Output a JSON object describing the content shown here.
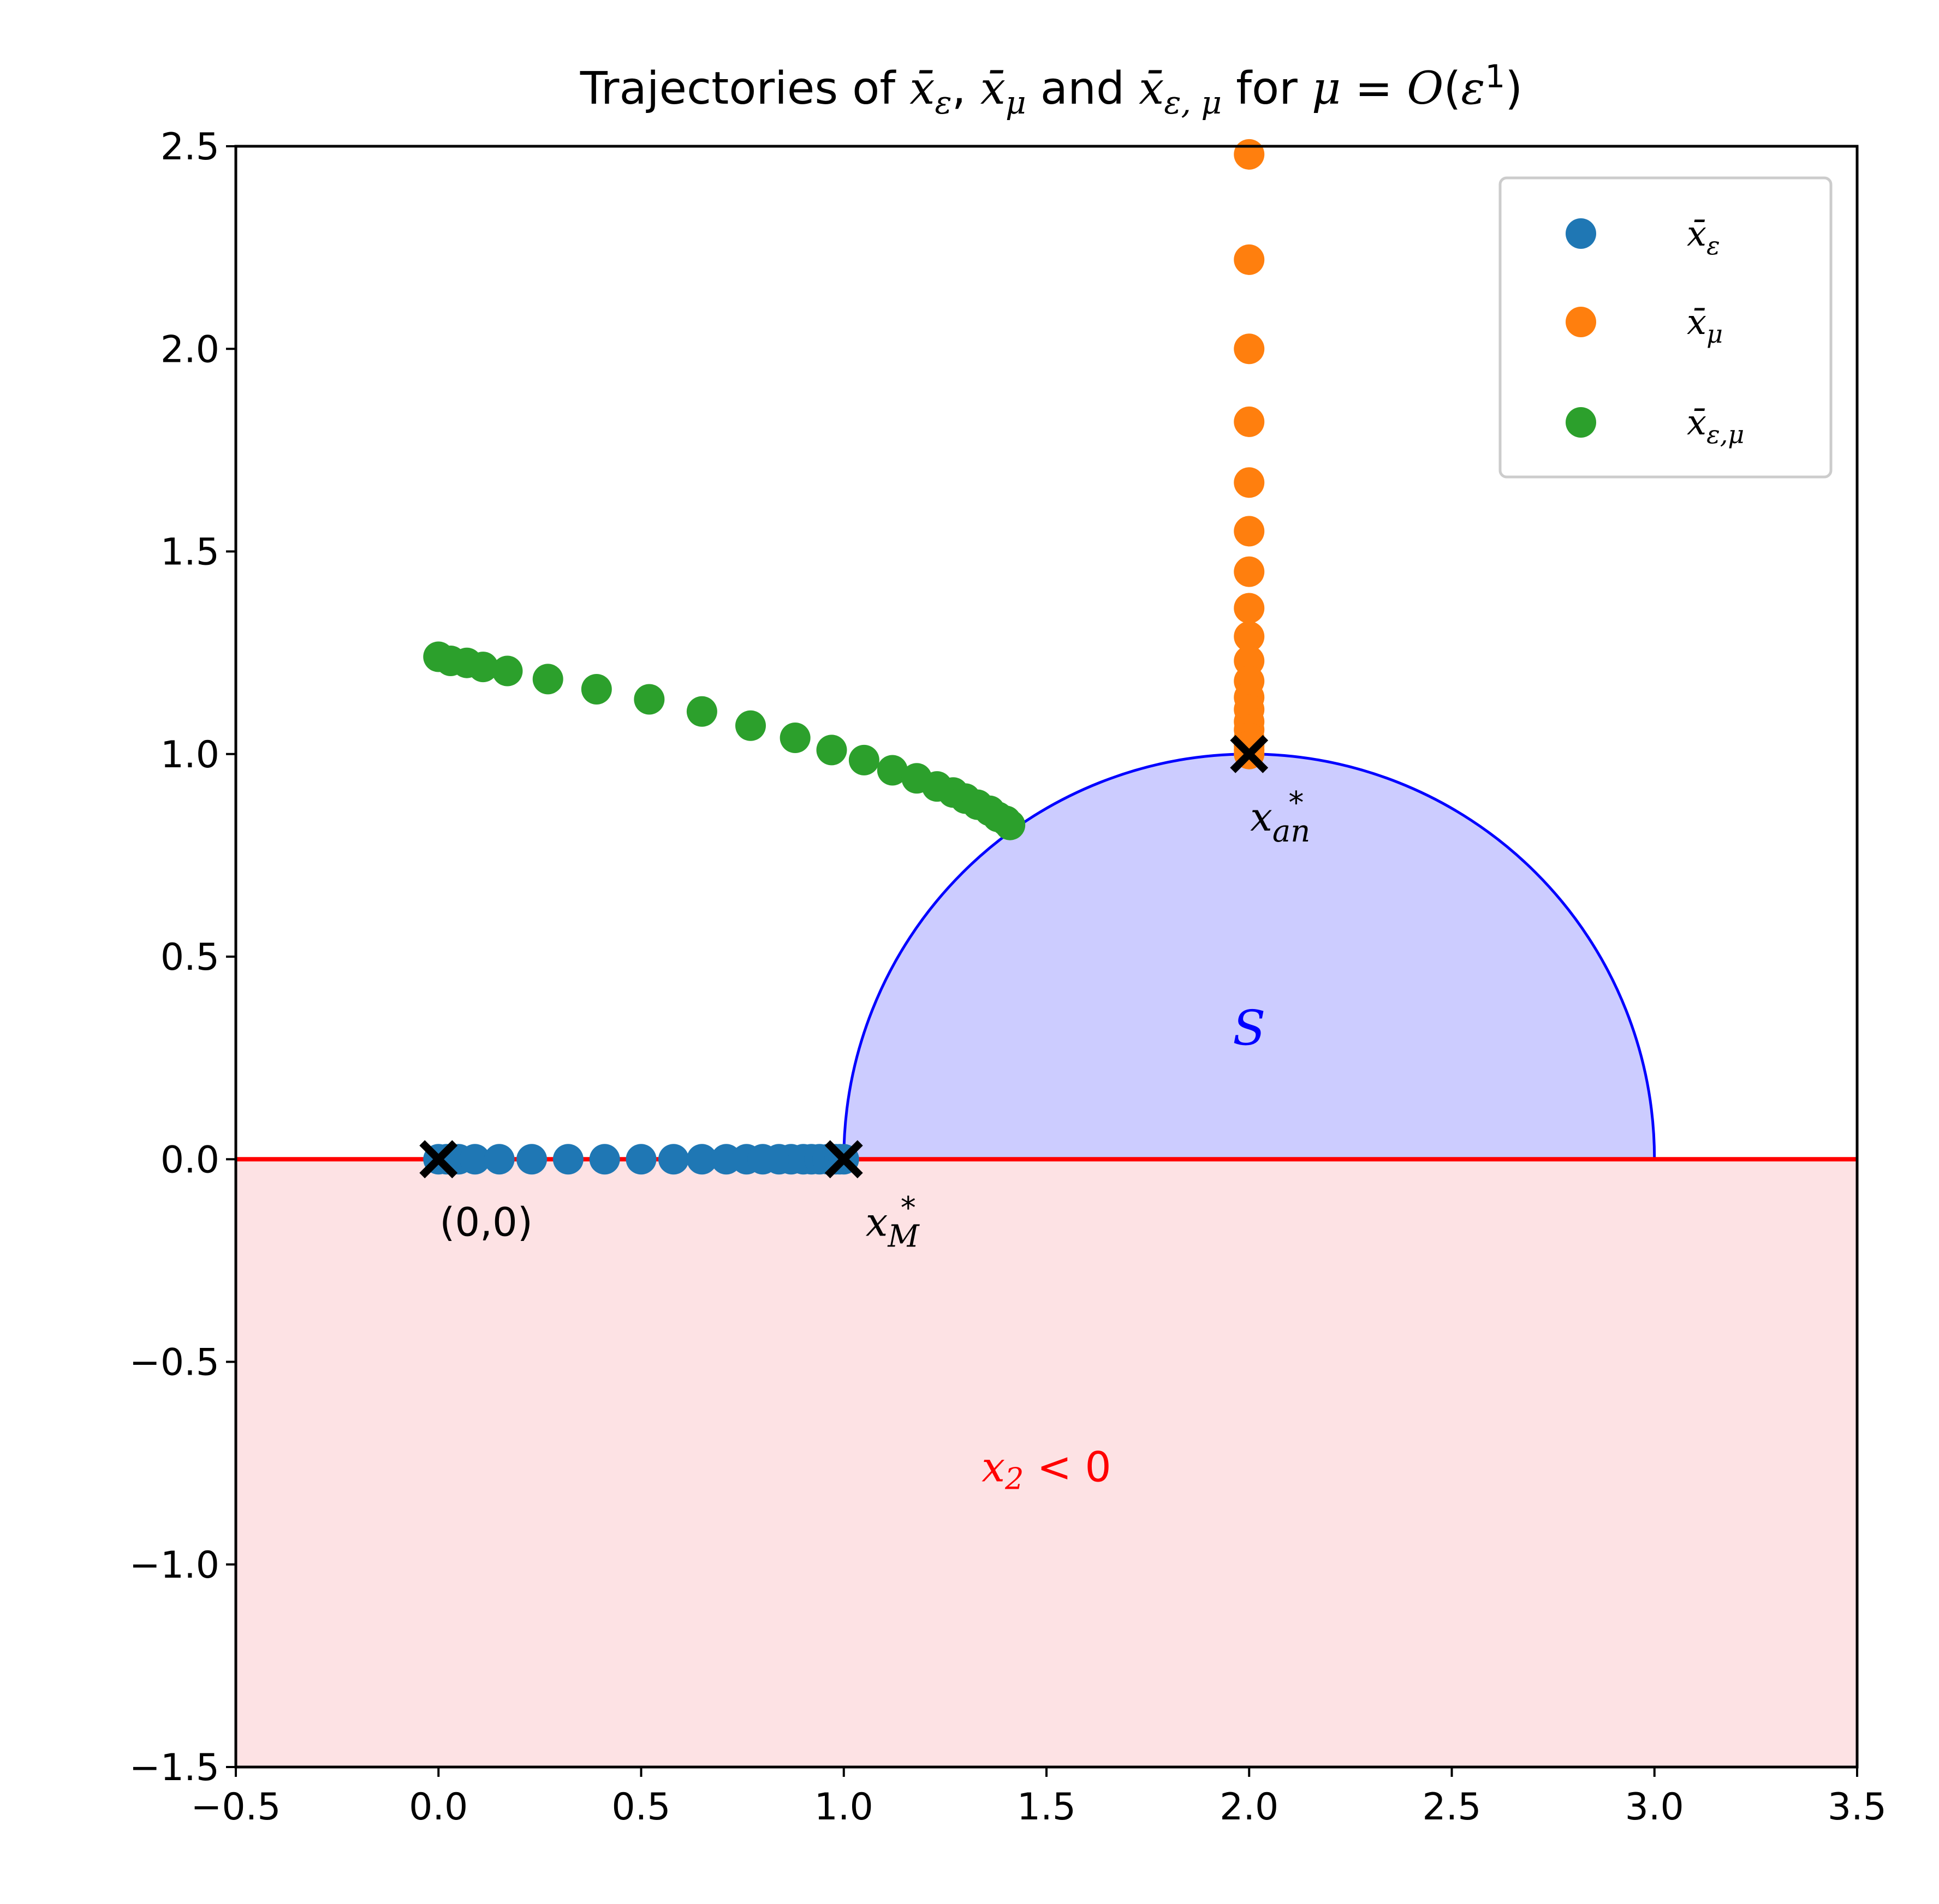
{
  "chart_data": {
    "type": "scatter",
    "title": "Trajectories of x̄ε, x̄μ and x̄ε,μ for μ = O(ε¹)",
    "xlim": [
      -0.5,
      3.5
    ],
    "ylim": [
      -1.5,
      2.5
    ],
    "xticks": [
      "−0.5",
      "0.0",
      "0.5",
      "1.0",
      "1.5",
      "2.0",
      "2.5",
      "3.0",
      "3.5"
    ],
    "yticks": [
      "−1.5",
      "−1.0",
      "−0.5",
      "0.0",
      "0.5",
      "1.0",
      "1.5",
      "2.0",
      "2.5"
    ],
    "grid": false,
    "legend_position": "top-right",
    "series": [
      {
        "name": "x̄ε",
        "color": "#1f77b4",
        "points": [
          [
            0.0,
            0.0
          ],
          [
            0.02,
            0.0
          ],
          [
            0.05,
            0.0
          ],
          [
            0.09,
            0.0
          ],
          [
            0.15,
            0.0
          ],
          [
            0.23,
            0.0
          ],
          [
            0.32,
            0.0
          ],
          [
            0.41,
            0.0
          ],
          [
            0.5,
            0.0
          ],
          [
            0.58,
            0.0
          ],
          [
            0.65,
            0.0
          ],
          [
            0.71,
            0.0
          ],
          [
            0.76,
            0.0
          ],
          [
            0.8,
            0.0
          ],
          [
            0.84,
            0.0
          ],
          [
            0.87,
            0.0
          ],
          [
            0.9,
            0.0
          ],
          [
            0.92,
            0.0
          ],
          [
            0.94,
            0.0
          ],
          [
            0.96,
            0.0
          ],
          [
            0.98,
            0.0
          ],
          [
            0.99,
            0.0
          ],
          [
            1.0,
            0.0
          ]
        ]
      },
      {
        "name": "x̄μ",
        "color": "#ff7f0e",
        "points": [
          [
            2.0,
            2.48
          ],
          [
            2.0,
            2.22
          ],
          [
            2.0,
            2.0
          ],
          [
            2.0,
            1.82
          ],
          [
            2.0,
            1.67
          ],
          [
            2.0,
            1.55
          ],
          [
            2.0,
            1.45
          ],
          [
            2.0,
            1.36
          ],
          [
            2.0,
            1.29
          ],
          [
            2.0,
            1.23
          ],
          [
            2.0,
            1.18
          ],
          [
            2.0,
            1.14
          ],
          [
            2.0,
            1.11
          ],
          [
            2.0,
            1.08
          ],
          [
            2.0,
            1.06
          ],
          [
            2.0,
            1.04
          ],
          [
            2.0,
            1.02
          ],
          [
            2.0,
            1.01
          ],
          [
            2.0,
            1.0
          ]
        ]
      },
      {
        "name": "x̄ε,μ",
        "color": "#2ca02c",
        "points": [
          [
            0.0,
            1.24
          ],
          [
            0.03,
            1.23
          ],
          [
            0.07,
            1.225
          ],
          [
            0.11,
            1.215
          ],
          [
            0.17,
            1.205
          ],
          [
            0.27,
            1.185
          ],
          [
            0.39,
            1.16
          ],
          [
            0.52,
            1.135
          ],
          [
            0.65,
            1.105
          ],
          [
            0.77,
            1.07
          ],
          [
            0.88,
            1.04
          ],
          [
            0.97,
            1.01
          ],
          [
            1.05,
            0.985
          ],
          [
            1.12,
            0.96
          ],
          [
            1.18,
            0.94
          ],
          [
            1.23,
            0.92
          ],
          [
            1.27,
            0.905
          ],
          [
            1.3,
            0.89
          ],
          [
            1.33,
            0.875
          ],
          [
            1.36,
            0.86
          ],
          [
            1.38,
            0.845
          ],
          [
            1.4,
            0.835
          ],
          [
            1.41,
            0.825
          ]
        ]
      }
    ],
    "markers": [
      {
        "x": 0.0,
        "y": 0.0,
        "label": "(0,0)"
      },
      {
        "x": 1.0,
        "y": 0.0,
        "label_base": "x",
        "label_sub": "M",
        "label_sup": "*"
      },
      {
        "x": 2.0,
        "y": 1.0,
        "label_base": "x",
        "label_sub": "an",
        "label_sup": "*"
      }
    ],
    "regions": {
      "semicircle": {
        "center": [
          2.0,
          0.0
        ],
        "radius": 1.0,
        "fill": "#ccccff",
        "edge": "#0000ff",
        "label": "S"
      },
      "lower": {
        "label_base": "x",
        "label_sub": "2",
        "label_rest": " < 0",
        "fill": "#fde2e4",
        "line": "#ff0000"
      }
    }
  }
}
